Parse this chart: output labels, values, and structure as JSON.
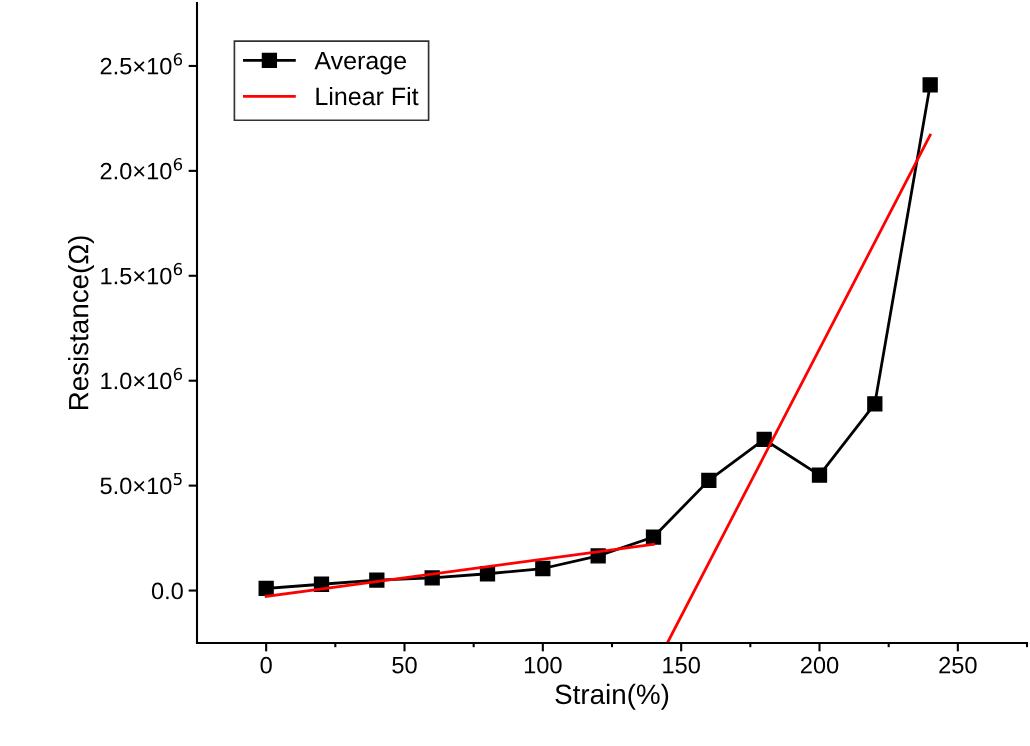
{
  "chart_data": {
    "type": "line",
    "xlabel": "Strain(%)",
    "ylabel": "Resistance(Ω)",
    "xlim": [
      -25,
      275
    ],
    "xticks": [
      0,
      50,
      100,
      150,
      200,
      250
    ],
    "ylim": [
      -250000,
      2800000
    ],
    "yticks": [
      {
        "value": 0,
        "label": "0.0"
      },
      {
        "value": 500000,
        "label": "5.0×10$^{5}$"
      },
      {
        "value": 1000000,
        "label": "1.0×10$^{6}$"
      },
      {
        "value": 1500000,
        "label": "1.5×10$^{6}$"
      },
      {
        "value": 2000000,
        "label": "2.0×10$^{6}$"
      },
      {
        "value": 2500000,
        "label": "2.5×10$^{6}$"
      }
    ],
    "x": [
      0,
      20,
      40,
      60,
      80,
      100,
      120,
      140,
      160,
      180,
      200,
      220,
      240
    ],
    "series": [
      {
        "name": "Average",
        "color": "#000000",
        "marker": "square",
        "values": [
          10000,
          30000,
          50000,
          60000,
          80000,
          105000,
          165000,
          255000,
          525000,
          720000,
          550000,
          890000,
          2410000
        ]
      },
      {
        "name": "Linear Fit",
        "color": "#ff0000",
        "marker": "none",
        "x": [
          0,
          140
        ],
        "values": [
          -28000,
          220000
        ]
      },
      {
        "color": "#ff0000",
        "marker": "none",
        "x": [
          145,
          240
        ],
        "values": [
          -250000,
          2170000
        ]
      }
    ],
    "legend": "top left",
    "grid": false
  }
}
